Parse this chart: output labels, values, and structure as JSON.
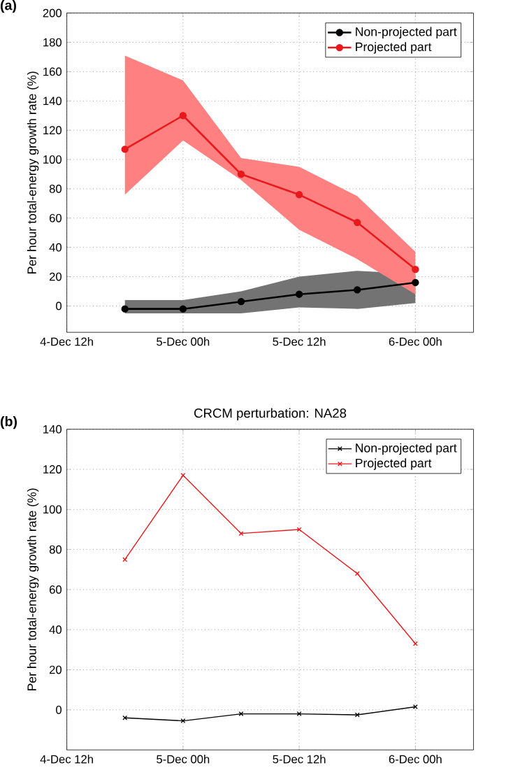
{
  "chart_data": [
    {
      "type": "line",
      "annotations": [
        "(a)"
      ],
      "ylabel": "Per hour total-energy growth rate (%)",
      "categories": [
        "4-Dec 12h",
        null,
        "5-Dec 00h",
        null,
        "5-Dec 12h",
        null,
        "6-Dec 00h"
      ],
      "ylim": [
        -18,
        200
      ],
      "yticks": [
        0,
        20,
        40,
        60,
        80,
        100,
        120,
        140,
        160,
        180,
        200
      ],
      "series": [
        {
          "name": "Non-projected part",
          "color": "#000000",
          "values": [
            null,
            -2,
            -2,
            3,
            8,
            11,
            16
          ],
          "lower": [
            null,
            -5,
            -5,
            -5,
            -1,
            -2,
            2
          ],
          "upper": [
            null,
            4,
            4,
            10,
            20,
            24,
            22
          ]
        },
        {
          "name": "Projected part",
          "color": "#e8191c",
          "values": [
            null,
            107,
            130,
            90,
            76,
            57,
            25
          ],
          "lower": [
            null,
            76,
            113,
            86,
            52,
            32,
            8
          ],
          "upper": [
            null,
            171,
            154,
            101,
            95,
            75,
            37
          ]
        }
      ],
      "grid": true,
      "legend": "top right",
      "marker": "circle",
      "line_style": "solid"
    },
    {
      "type": "line",
      "annotations": [
        "(b)"
      ],
      "title": "CRCM perturbation: NA28",
      "ylabel": "Per hour total-energy growth rate (%)",
      "categories": [
        "4-Dec 12h",
        null,
        "5-Dec 00h",
        null,
        "5-Dec 12h",
        null,
        "6-Dec 00h"
      ],
      "ylim": [
        -20,
        140
      ],
      "yticks": [
        0,
        20,
        40,
        60,
        80,
        100,
        120,
        140
      ],
      "series": [
        {
          "name": "Non-projected part",
          "color": "#000000",
          "values": [
            null,
            -4,
            -5.5,
            -2,
            -2,
            -2.5,
            1.5
          ]
        },
        {
          "name": "Projected part",
          "color": "#e8191c",
          "values": [
            null,
            75,
            117,
            88,
            90,
            68,
            33
          ]
        }
      ],
      "grid": true,
      "legend": "top right",
      "marker": "cross",
      "line_style": "solid"
    }
  ]
}
